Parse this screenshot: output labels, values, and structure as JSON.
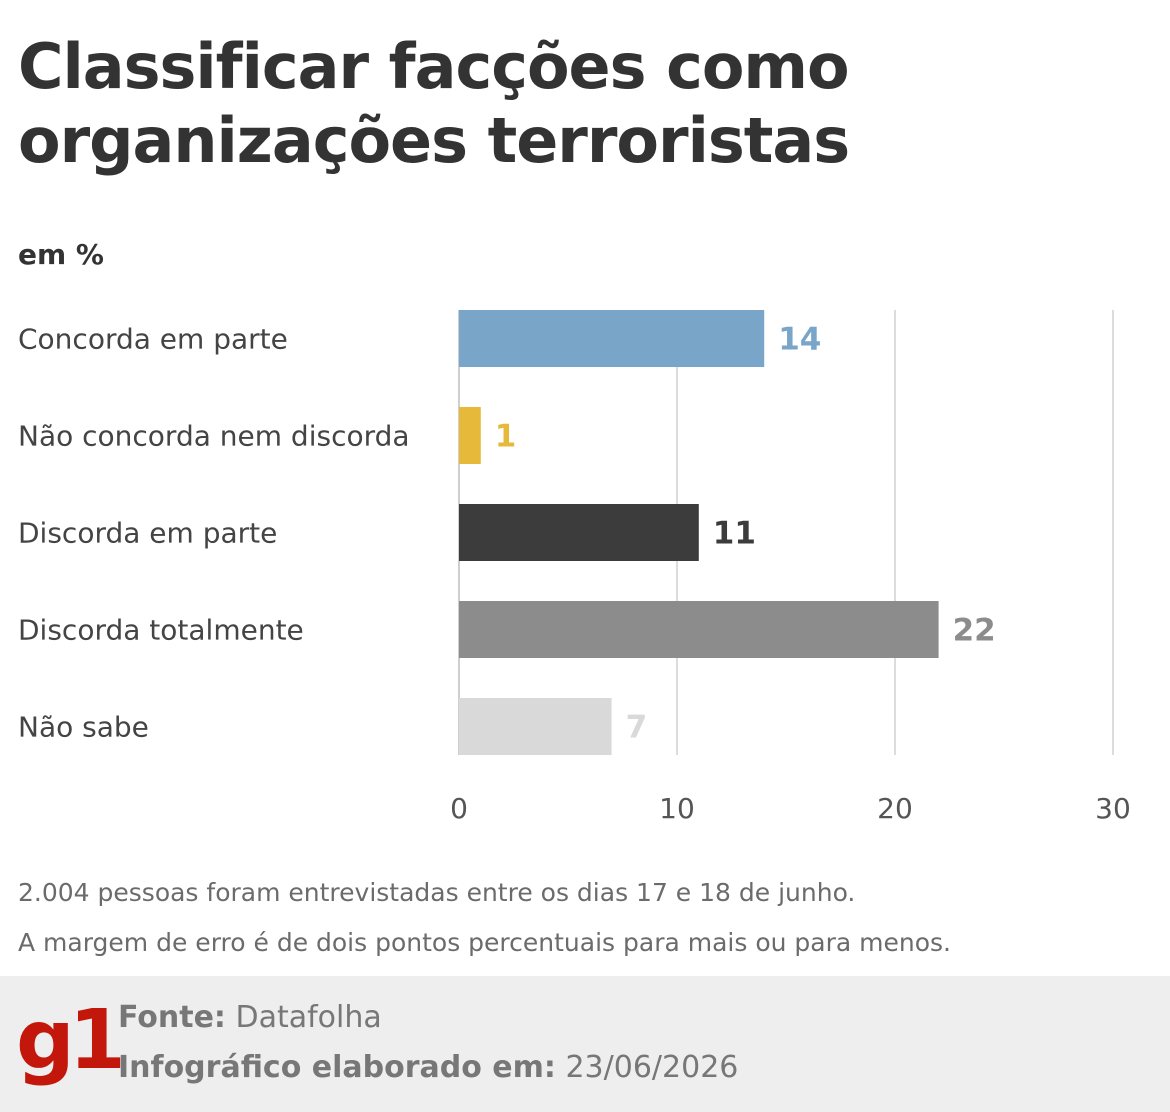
{
  "title_line1": "Classificar facções como",
  "title_line2": "organizações terroristas",
  "unit_label": "em %",
  "chart_data": {
    "type": "bar",
    "orientation": "horizontal",
    "categories": [
      "Concorda em parte",
      "Não concorda nem discorda",
      "Discorda em parte",
      "Discorda totalmente",
      "Não sabe"
    ],
    "values": [
      14,
      1,
      11,
      22,
      7
    ],
    "colors": [
      "#79a6c8",
      "#e6b93a",
      "#3c3c3c",
      "#8c8c8c",
      "#d9d9d9"
    ],
    "xlim": [
      0,
      30
    ],
    "xticks": [
      0,
      10,
      20,
      30
    ],
    "grid": true,
    "data_labels": true
  },
  "note_line1": "2.004 pessoas foram entrevistadas entre os dias 17 e 18 de junho.",
  "note_line2": "A margem de erro é de dois pontos percentuais para mais ou para menos.",
  "footer": {
    "logo": "g1",
    "source_label": "Fonte:",
    "source_value": "Datafolha",
    "date_label": "Infográfico elaborado em:",
    "date_value": "23/06/2026",
    "brand_color": "#c4170c"
  }
}
